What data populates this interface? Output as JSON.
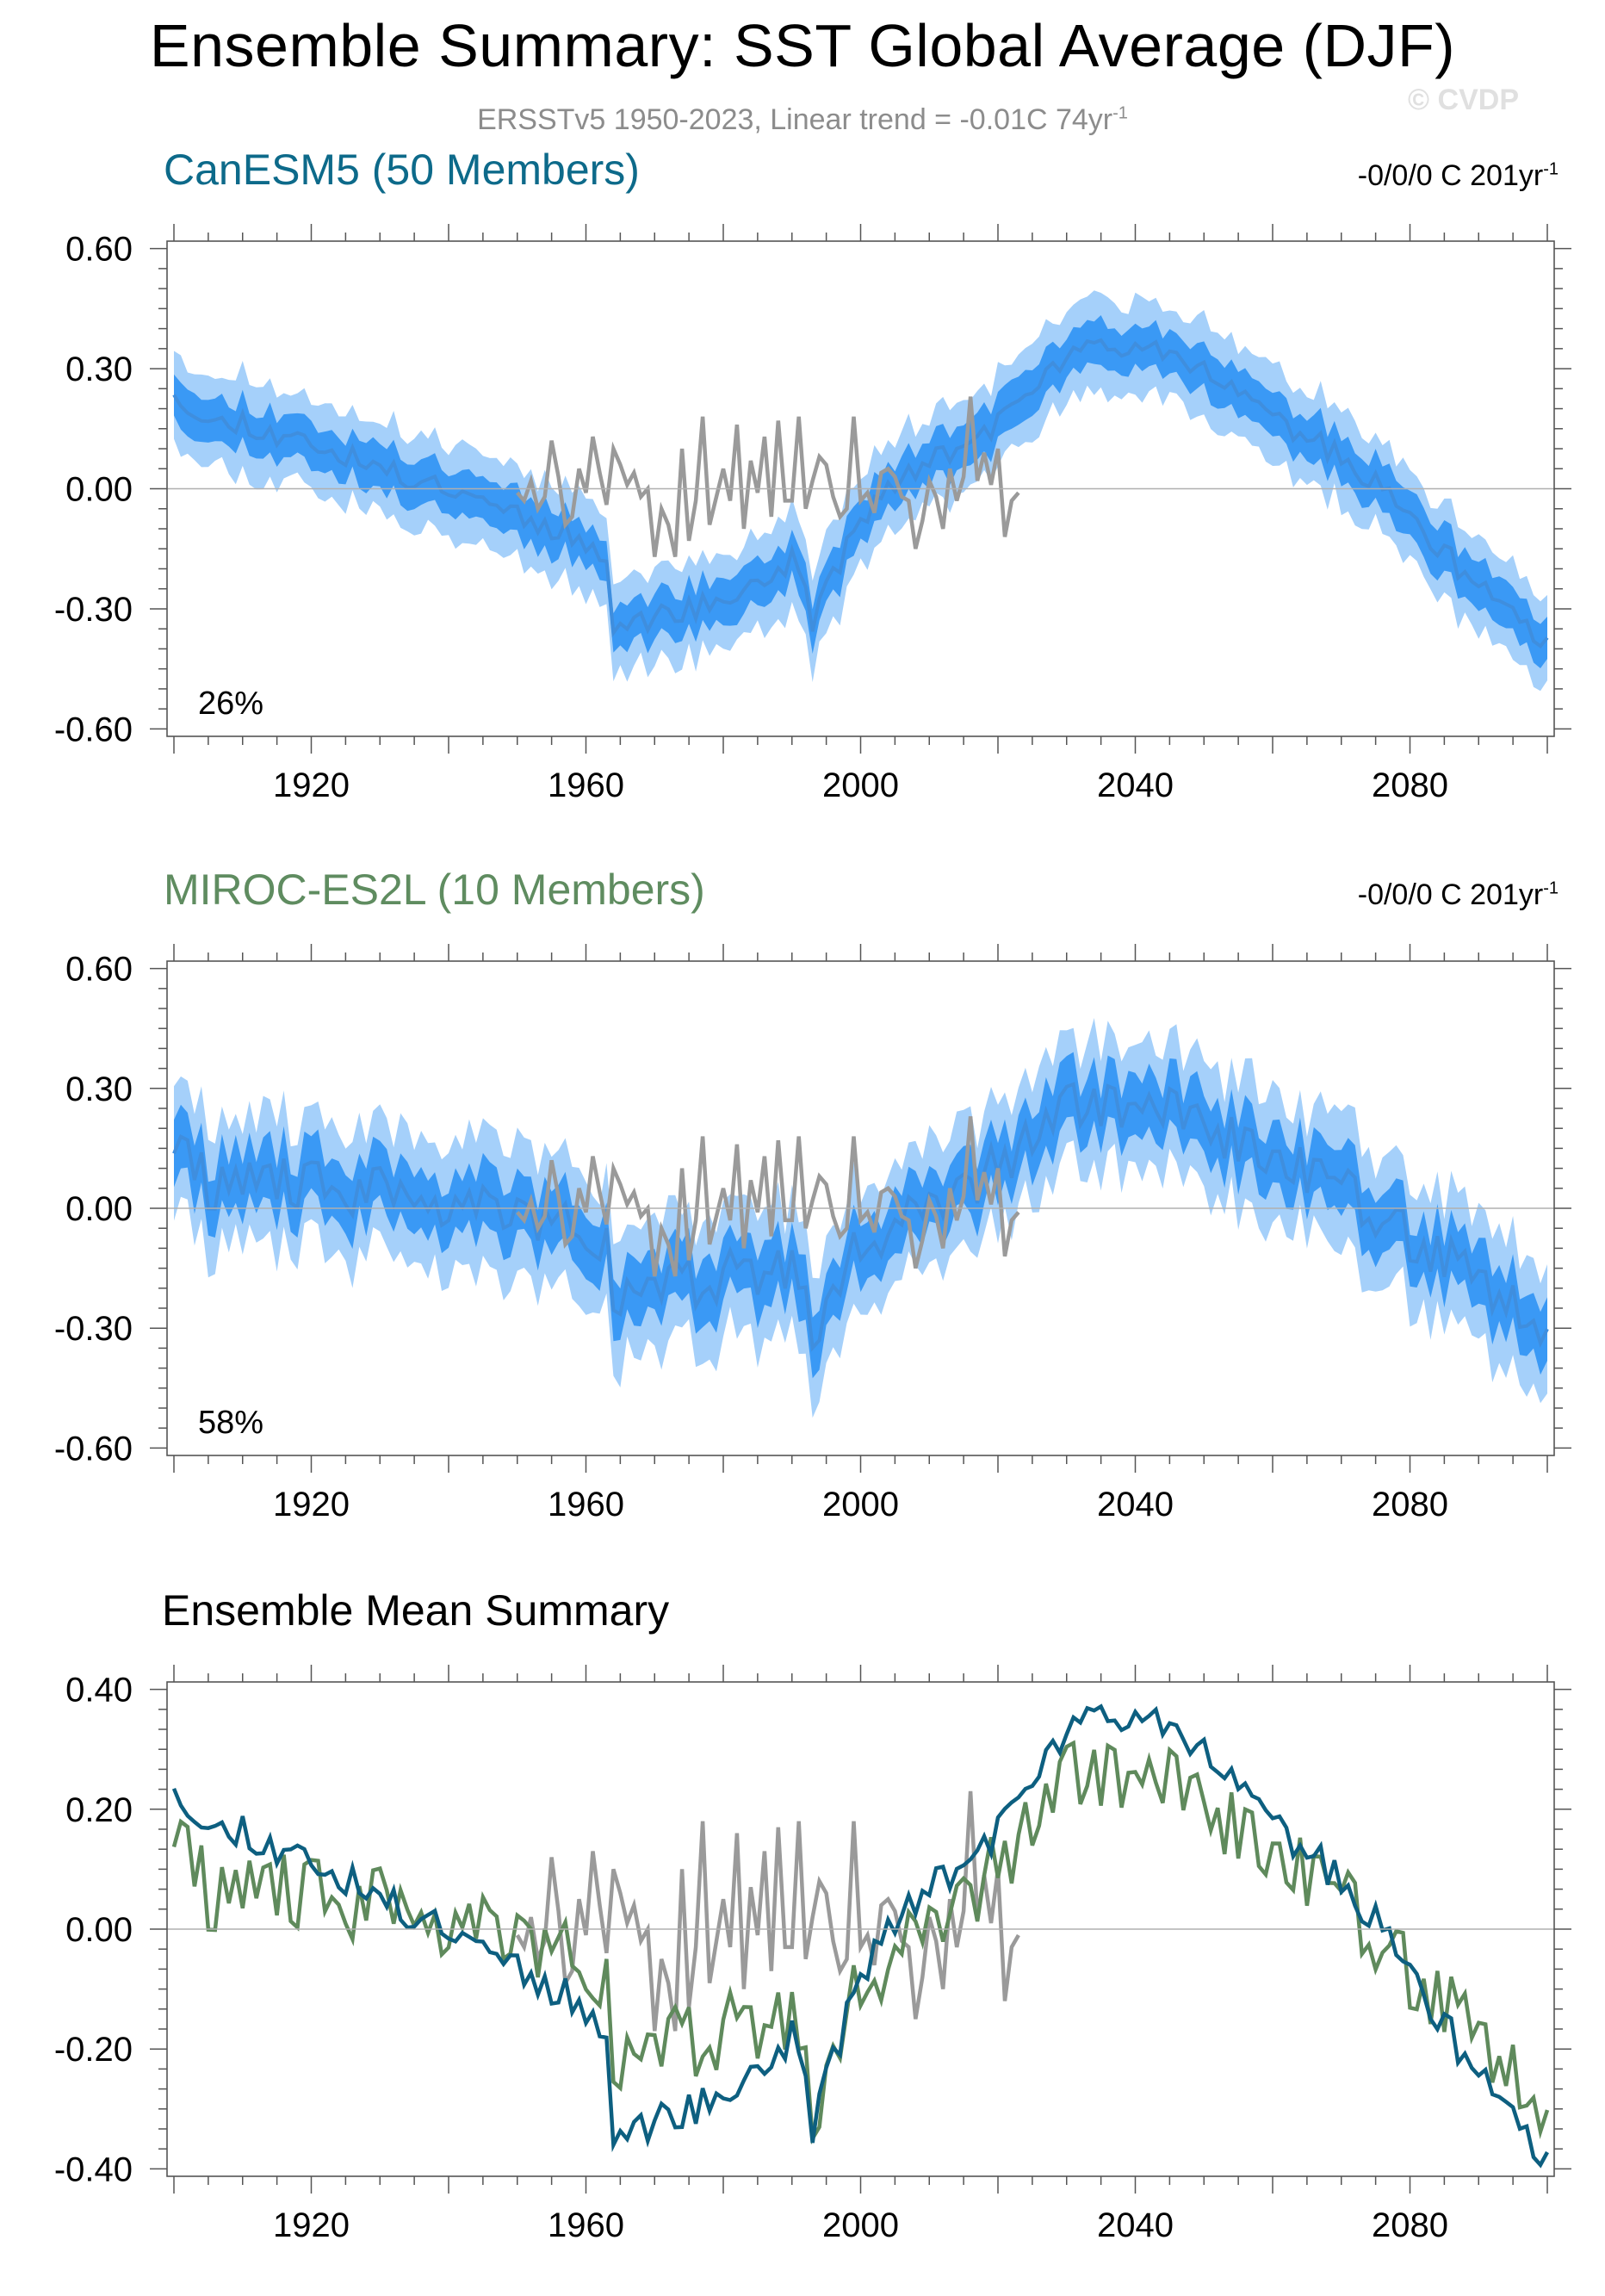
{
  "header": {
    "title": "Ensemble Summary: SST Global Average (DJF)",
    "subtitle_main": "ERSSTv5 1950-2023, Linear trend = -0.01C 74yr",
    "subtitle_sup": "-1",
    "copyright": "© CVDP"
  },
  "colors": {
    "canesm_title": "#0d6a8a",
    "miroc_title": "#5f8c60",
    "band_outer": "#a5d0fa",
    "band_inner": "#3a99f5",
    "mean_line": "#3f8ede",
    "obs_line": "#9a9a9a",
    "canesm_line": "#0d5f80",
    "miroc_line": "#5f8a5c"
  },
  "chart_data": [
    {
      "type": "area",
      "title": "CanESM5 (50 Members)",
      "trend_text": "-0/0/0 C 201yr",
      "trend_sup": "-1",
      "percent_label": "26%",
      "xlim": [
        1900,
        2100
      ],
      "ylim": [
        -0.6,
        0.6
      ],
      "x_ticks": [
        1920,
        1960,
        2000,
        2040,
        2080
      ],
      "y_ticks": [
        "0.60",
        "0.30",
        "0.00",
        "-0.30",
        "-0.60"
      ],
      "y_tick_values": [
        0.6,
        0.3,
        0.0,
        -0.3,
        -0.6
      ],
      "series": {
        "mean_anchor_x": [
          1900,
          1905,
          1910,
          1915,
          1920,
          1925,
          1930,
          1935,
          1940,
          1945,
          1950,
          1955,
          1960,
          1963,
          1964,
          1966,
          1970,
          1975,
          1980,
          1985,
          1990,
          1992,
          1993,
          1995,
          2000,
          2005,
          2010,
          2015,
          2020,
          2025,
          2030,
          2035,
          2040,
          2045,
          2050,
          2055,
          2060,
          2065,
          2070,
          2075,
          2080,
          2085,
          2090,
          2095,
          2100
        ],
        "mean_anchor_y": [
          0.25,
          0.16,
          0.17,
          0.13,
          0.12,
          0.08,
          0.05,
          0.02,
          0.01,
          -0.02,
          -0.06,
          -0.1,
          -0.13,
          -0.16,
          -0.35,
          -0.34,
          -0.32,
          -0.3,
          -0.28,
          -0.24,
          -0.18,
          -0.24,
          -0.33,
          -0.25,
          -0.08,
          0.02,
          0.06,
          0.12,
          0.16,
          0.25,
          0.33,
          0.35,
          0.37,
          0.35,
          0.3,
          0.24,
          0.18,
          0.13,
          0.08,
          0.01,
          -0.07,
          -0.16,
          -0.25,
          -0.32,
          -0.39
        ],
        "inner_halfwidth": 0.055,
        "outer_halfwidth": 0.115,
        "noise": 0.03,
        "seed": 11
      },
      "observed": {
        "name": "ERSSTv5",
        "x_start": 1950,
        "values": [
          -0.01,
          -0.03,
          0.02,
          -0.05,
          -0.02,
          0.12,
          0.03,
          -0.09,
          -0.07,
          0.05,
          -0.01,
          0.13,
          0.04,
          -0.04,
          0.1,
          0.06,
          0.01,
          0.04,
          -0.02,
          0.0,
          -0.17,
          -0.05,
          -0.09,
          -0.17,
          0.1,
          -0.13,
          -0.03,
          0.18,
          -0.09,
          -0.02,
          0.05,
          -0.03,
          0.16,
          -0.1,
          0.07,
          -0.01,
          0.13,
          -0.07,
          0.17,
          -0.03,
          -0.03,
          0.18,
          -0.05,
          0.02,
          0.08,
          0.06,
          -0.02,
          -0.07,
          -0.05,
          0.18,
          -0.03,
          -0.01,
          -0.06,
          0.04,
          0.05,
          0.03,
          -0.02,
          -0.03,
          -0.15,
          -0.08,
          0.02,
          -0.02,
          -0.1,
          0.05,
          -0.03,
          0.03,
          0.23,
          0.02,
          0.09,
          0.01,
          0.1,
          -0.12,
          -0.03,
          -0.01
        ]
      }
    },
    {
      "type": "area",
      "title": "MIROC-ES2L (10 Members)",
      "trend_text": "-0/0/0 C 201yr",
      "trend_sup": "-1",
      "percent_label": "58%",
      "xlim": [
        1900,
        2100
      ],
      "ylim": [
        -0.6,
        0.6
      ],
      "x_ticks": [
        1920,
        1960,
        2000,
        2040,
        2080
      ],
      "y_ticks": [
        "0.60",
        "0.30",
        "0.00",
        "-0.30",
        "-0.60"
      ],
      "y_tick_values": [
        0.6,
        0.3,
        0.0,
        -0.3,
        -0.6
      ],
      "series": {
        "mean_anchor_x": [
          1900,
          1905,
          1910,
          1915,
          1920,
          1925,
          1930,
          1935,
          1940,
          1945,
          1950,
          1955,
          1960,
          1963,
          1964,
          1966,
          1970,
          1975,
          1980,
          1985,
          1990,
          1992,
          1993,
          1995,
          2000,
          2005,
          2010,
          2015,
          2020,
          2025,
          2030,
          2035,
          2040,
          2045,
          2050,
          2055,
          2060,
          2065,
          2070,
          2075,
          2080,
          2085,
          2090,
          2095,
          2100
        ],
        "mean_anchor_y": [
          0.17,
          0.06,
          0.05,
          0.07,
          0.06,
          0.03,
          0.04,
          0.03,
          0.02,
          0.01,
          0.0,
          -0.03,
          -0.06,
          -0.1,
          -0.27,
          -0.2,
          -0.18,
          -0.19,
          -0.17,
          -0.16,
          -0.15,
          -0.25,
          -0.36,
          -0.2,
          -0.08,
          -0.04,
          -0.02,
          0.05,
          0.1,
          0.2,
          0.25,
          0.25,
          0.26,
          0.24,
          0.21,
          0.17,
          0.14,
          0.09,
          0.05,
          -0.01,
          -0.07,
          -0.12,
          -0.19,
          -0.23,
          -0.31
        ],
        "inner_halfwidth": 0.075,
        "outer_halfwidth": 0.16,
        "noise": 0.065,
        "seed": 29
      },
      "observed": {
        "name": "ERSSTv5",
        "x_start": 1950,
        "values": [
          -0.01,
          -0.03,
          0.02,
          -0.05,
          -0.02,
          0.12,
          0.03,
          -0.09,
          -0.07,
          0.05,
          -0.01,
          0.13,
          0.04,
          -0.04,
          0.1,
          0.06,
          0.01,
          0.04,
          -0.02,
          0.0,
          -0.17,
          -0.05,
          -0.09,
          -0.17,
          0.1,
          -0.13,
          -0.03,
          0.18,
          -0.09,
          -0.02,
          0.05,
          -0.03,
          0.16,
          -0.1,
          0.07,
          -0.01,
          0.13,
          -0.07,
          0.17,
          -0.03,
          -0.03,
          0.18,
          -0.05,
          0.02,
          0.08,
          0.06,
          -0.02,
          -0.07,
          -0.05,
          0.18,
          -0.03,
          -0.01,
          -0.06,
          0.04,
          0.05,
          0.03,
          -0.02,
          -0.03,
          -0.15,
          -0.08,
          0.02,
          -0.02,
          -0.1,
          0.05,
          -0.03,
          0.03,
          0.23,
          0.02,
          0.09,
          0.01,
          0.1,
          -0.12,
          -0.03,
          -0.01
        ]
      }
    },
    {
      "type": "line",
      "title": "Ensemble Mean Summary",
      "xlim": [
        1900,
        2100
      ],
      "ylim": [
        -0.4,
        0.4
      ],
      "x_ticks": [
        1920,
        1960,
        2000,
        2040,
        2080
      ],
      "y_ticks": [
        "0.40",
        "0.20",
        "0.00",
        "-0.20",
        "-0.40"
      ],
      "y_tick_values": [
        0.4,
        0.2,
        0.0,
        -0.2,
        -0.4
      ],
      "series": [
        {
          "name": "CanESM5",
          "source": 0
        },
        {
          "name": "MIROC-ES2L",
          "source": 1
        },
        {
          "name": "ERSSTv5",
          "source": "observed"
        }
      ]
    }
  ]
}
